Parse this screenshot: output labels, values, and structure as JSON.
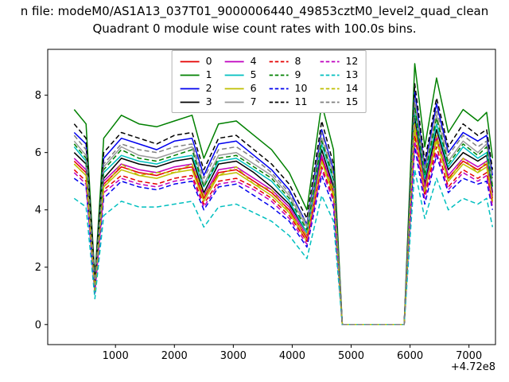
{
  "header": {
    "title_line": "n file: modeM0/AS1A13_037T01_9000006440_49853cztM0_level2_quad_clean",
    "subtitle": "Quadrant 0 module wise count rates with 100.0s bins."
  },
  "chart_data": {
    "type": "line",
    "suptitle": "n file: modeM0/AS1A13_037T01_9000006440_49853cztM0_level2_quad_clean",
    "title": "Quadrant 0 module wise count rates with 100.0s bins.",
    "xlabel": "",
    "ylabel": "",
    "x_axis_offset_label": "+4.72e8",
    "xlim": [
      -150,
      7450
    ],
    "ylim": [
      -0.7,
      9.6
    ],
    "xticks": [
      1000,
      2000,
      3000,
      4000,
      5000,
      6000,
      7000
    ],
    "yticks": [
      0,
      2,
      4,
      6,
      8
    ],
    "grid": false,
    "legend_position": "upper center",
    "legend_columns": 4,
    "frame_color": "#000000",
    "x": [
      300,
      500,
      650,
      800,
      1100,
      1400,
      1700,
      2000,
      2300,
      2500,
      2750,
      3050,
      3350,
      3650,
      3950,
      4250,
      4500,
      4700,
      4850,
      5200,
      5600,
      5900,
      6080,
      6250,
      6450,
      6650,
      6900,
      7150,
      7300,
      7400
    ],
    "series": [
      {
        "name": "0",
        "color": "#e50000",
        "dash": false,
        "values": [
          5.7,
          5.3,
          1.2,
          4.9,
          5.5,
          5.3,
          5.2,
          5.4,
          5.5,
          4.4,
          5.3,
          5.4,
          5.0,
          4.6,
          4.0,
          3.0,
          5.8,
          4.6,
          0,
          0,
          0,
          0,
          6.9,
          4.7,
          6.5,
          5.1,
          5.7,
          5.4,
          5.6,
          4.4
        ]
      },
      {
        "name": "1",
        "color": "#008000",
        "dash": false,
        "values": [
          7.5,
          7.0,
          1.6,
          6.5,
          7.3,
          7.0,
          6.9,
          7.1,
          7.3,
          5.8,
          7.0,
          7.1,
          6.6,
          6.1,
          5.3,
          4.0,
          7.7,
          6.1,
          0,
          0,
          0,
          0,
          9.1,
          6.2,
          8.6,
          6.7,
          7.5,
          7.1,
          7.4,
          5.8
        ]
      },
      {
        "name": "2",
        "color": "#0000ee",
        "dash": false,
        "values": [
          6.7,
          6.3,
          1.4,
          5.8,
          6.5,
          6.3,
          6.1,
          6.4,
          6.5,
          5.2,
          6.3,
          6.4,
          5.9,
          5.4,
          4.7,
          3.5,
          6.8,
          5.4,
          0,
          0,
          0,
          0,
          8.1,
          5.5,
          7.7,
          6.0,
          6.7,
          6.4,
          6.6,
          5.2
        ]
      },
      {
        "name": "3",
        "color": "#000000",
        "dash": false,
        "values": [
          6.0,
          5.6,
          1.3,
          5.1,
          5.8,
          5.6,
          5.5,
          5.7,
          5.8,
          4.6,
          5.6,
          5.7,
          5.3,
          4.8,
          4.2,
          3.2,
          6.1,
          4.8,
          0,
          0,
          0,
          0,
          7.2,
          4.9,
          6.8,
          5.4,
          6.0,
          5.7,
          5.9,
          4.6
        ]
      },
      {
        "name": "4",
        "color": "#bf00bf",
        "dash": false,
        "values": [
          5.8,
          5.4,
          1.2,
          5.0,
          5.6,
          5.4,
          5.3,
          5.5,
          5.6,
          4.5,
          5.4,
          5.5,
          5.1,
          4.7,
          4.1,
          3.1,
          5.9,
          4.7,
          0,
          0,
          0,
          0,
          7.0,
          4.8,
          6.6,
          5.2,
          5.8,
          5.5,
          5.7,
          4.5
        ]
      },
      {
        "name": "5",
        "color": "#00bfbf",
        "dash": false,
        "values": [
          6.2,
          5.7,
          1.3,
          5.3,
          5.9,
          5.7,
          5.6,
          5.8,
          5.9,
          4.8,
          5.7,
          5.8,
          5.4,
          5.0,
          4.3,
          3.2,
          6.3,
          5.0,
          0,
          0,
          0,
          0,
          7.5,
          5.1,
          7.0,
          5.5,
          6.2,
          5.8,
          6.0,
          4.8
        ]
      },
      {
        "name": "6",
        "color": "#bfbf00",
        "dash": false,
        "values": [
          5.6,
          5.2,
          1.2,
          4.8,
          5.4,
          5.2,
          5.1,
          5.3,
          5.4,
          4.3,
          5.2,
          5.3,
          4.9,
          4.5,
          3.9,
          2.9,
          5.7,
          4.5,
          0,
          0,
          0,
          0,
          6.8,
          4.6,
          6.4,
          5.0,
          5.6,
          5.3,
          5.5,
          4.3
        ]
      },
      {
        "name": "7",
        "color": "#9a9a9a",
        "dash": false,
        "values": [
          6.4,
          5.9,
          1.3,
          5.5,
          6.2,
          5.9,
          5.8,
          6.0,
          6.2,
          4.9,
          5.9,
          6.0,
          5.6,
          5.2,
          4.5,
          3.4,
          6.5,
          5.2,
          0,
          0,
          0,
          0,
          7.7,
          5.3,
          7.3,
          5.7,
          6.4,
          6.0,
          6.3,
          4.9
        ]
      },
      {
        "name": "8",
        "color": "#e50000",
        "dash": true,
        "values": [
          5.4,
          5.0,
          1.1,
          4.7,
          5.2,
          5.0,
          4.9,
          5.1,
          5.2,
          4.2,
          5.0,
          5.1,
          4.8,
          4.4,
          3.8,
          2.9,
          5.5,
          4.4,
          0,
          0,
          0,
          0,
          6.6,
          4.5,
          6.2,
          4.8,
          5.4,
          5.1,
          5.3,
          4.2
        ]
      },
      {
        "name": "9",
        "color": "#008000",
        "dash": true,
        "values": [
          6.3,
          5.8,
          1.3,
          5.4,
          6.1,
          5.8,
          5.7,
          5.9,
          6.1,
          4.8,
          5.8,
          5.9,
          5.5,
          5.1,
          4.4,
          3.3,
          6.4,
          5.1,
          0,
          0,
          0,
          0,
          7.6,
          5.2,
          7.2,
          5.6,
          6.3,
          5.9,
          6.2,
          4.8
        ]
      },
      {
        "name": "10",
        "color": "#0000ee",
        "dash": true,
        "values": [
          5.1,
          4.8,
          1.1,
          4.4,
          5.0,
          4.8,
          4.7,
          4.9,
          5.0,
          4.0,
          4.8,
          4.9,
          4.5,
          4.1,
          3.6,
          2.7,
          5.2,
          4.1,
          0,
          0,
          0,
          0,
          6.2,
          4.2,
          5.9,
          4.6,
          5.1,
          4.9,
          5.0,
          4.0
        ]
      },
      {
        "name": "11",
        "color": "#000000",
        "dash": true,
        "values": [
          7.0,
          6.5,
          1.5,
          6.0,
          6.7,
          6.5,
          6.3,
          6.6,
          6.7,
          5.4,
          6.5,
          6.6,
          6.1,
          5.6,
          4.9,
          3.7,
          7.1,
          5.6,
          0,
          0,
          0,
          0,
          8.4,
          5.7,
          7.9,
          6.2,
          7.0,
          6.6,
          6.8,
          5.4
        ]
      },
      {
        "name": "12",
        "color": "#bf00bf",
        "dash": true,
        "values": [
          5.3,
          4.9,
          1.1,
          4.6,
          5.1,
          4.9,
          4.8,
          5.0,
          5.1,
          4.1,
          4.9,
          5.0,
          4.7,
          4.3,
          3.7,
          2.8,
          5.4,
          4.3,
          0,
          0,
          0,
          0,
          6.4,
          4.4,
          6.0,
          4.7,
          5.3,
          5.0,
          5.2,
          4.1
        ]
      },
      {
        "name": "13",
        "color": "#00bfbf",
        "dash": true,
        "values": [
          4.4,
          4.1,
          0.9,
          3.8,
          4.3,
          4.1,
          4.1,
          4.2,
          4.3,
          3.4,
          4.1,
          4.2,
          3.9,
          3.6,
          3.1,
          2.3,
          4.5,
          3.6,
          0,
          0,
          0,
          0,
          5.4,
          3.7,
          5.1,
          4.0,
          4.4,
          4.2,
          4.4,
          3.4
        ]
      },
      {
        "name": "14",
        "color": "#bfbf00",
        "dash": true,
        "values": [
          5.6,
          5.2,
          1.2,
          4.8,
          5.6,
          5.2,
          5.3,
          5.3,
          5.6,
          4.5,
          5.2,
          5.5,
          4.9,
          4.7,
          3.9,
          3.1,
          5.7,
          4.7,
          0,
          0,
          0,
          0,
          7.0,
          4.6,
          6.6,
          5.0,
          5.8,
          5.3,
          5.7,
          4.3
        ]
      },
      {
        "name": "15",
        "color": "#7f7f7f",
        "dash": true,
        "values": [
          6.6,
          6.1,
          1.4,
          5.6,
          6.3,
          6.1,
          6.0,
          6.2,
          6.3,
          5.1,
          6.1,
          6.2,
          5.8,
          5.3,
          4.6,
          3.5,
          6.7,
          5.3,
          0,
          0,
          0,
          0,
          7.9,
          5.4,
          7.5,
          5.9,
          6.6,
          6.2,
          6.4,
          5.1
        ]
      }
    ]
  }
}
